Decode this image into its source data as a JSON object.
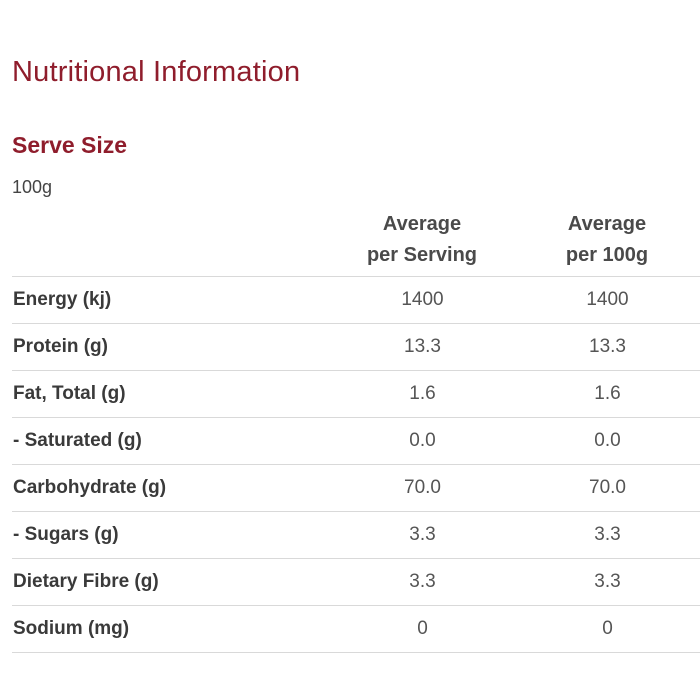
{
  "title": "Nutritional Information",
  "serve": {
    "heading": "Serve Size",
    "value": "100g"
  },
  "table": {
    "headers": {
      "per_serving": [
        "Average",
        "per Serving"
      ],
      "per_100g": [
        "Average",
        "per 100g"
      ]
    },
    "rows": [
      {
        "label": "Energy (kj)",
        "per_serving": "1400",
        "per_100g": "1400"
      },
      {
        "label": "Protein (g)",
        "per_serving": "13.3",
        "per_100g": "13.3"
      },
      {
        "label": "Fat, Total (g)",
        "per_serving": "1.6",
        "per_100g": "1.6"
      },
      {
        "label": "- Saturated (g)",
        "per_serving": "0.0",
        "per_100g": "0.0"
      },
      {
        "label": "Carbohydrate (g)",
        "per_serving": "70.0",
        "per_100g": "70.0"
      },
      {
        "label": "- Sugars (g)",
        "per_serving": "3.3",
        "per_100g": "3.3"
      },
      {
        "label": "Dietary Fibre (g)",
        "per_serving": "3.3",
        "per_100g": "3.3"
      },
      {
        "label": "Sodium (mg)",
        "per_serving": "0",
        "per_100g": "0"
      }
    ]
  },
  "colors": {
    "heading": "#8f1d2c",
    "text": "#3a3a3a",
    "divider": "#d9d9d9"
  }
}
